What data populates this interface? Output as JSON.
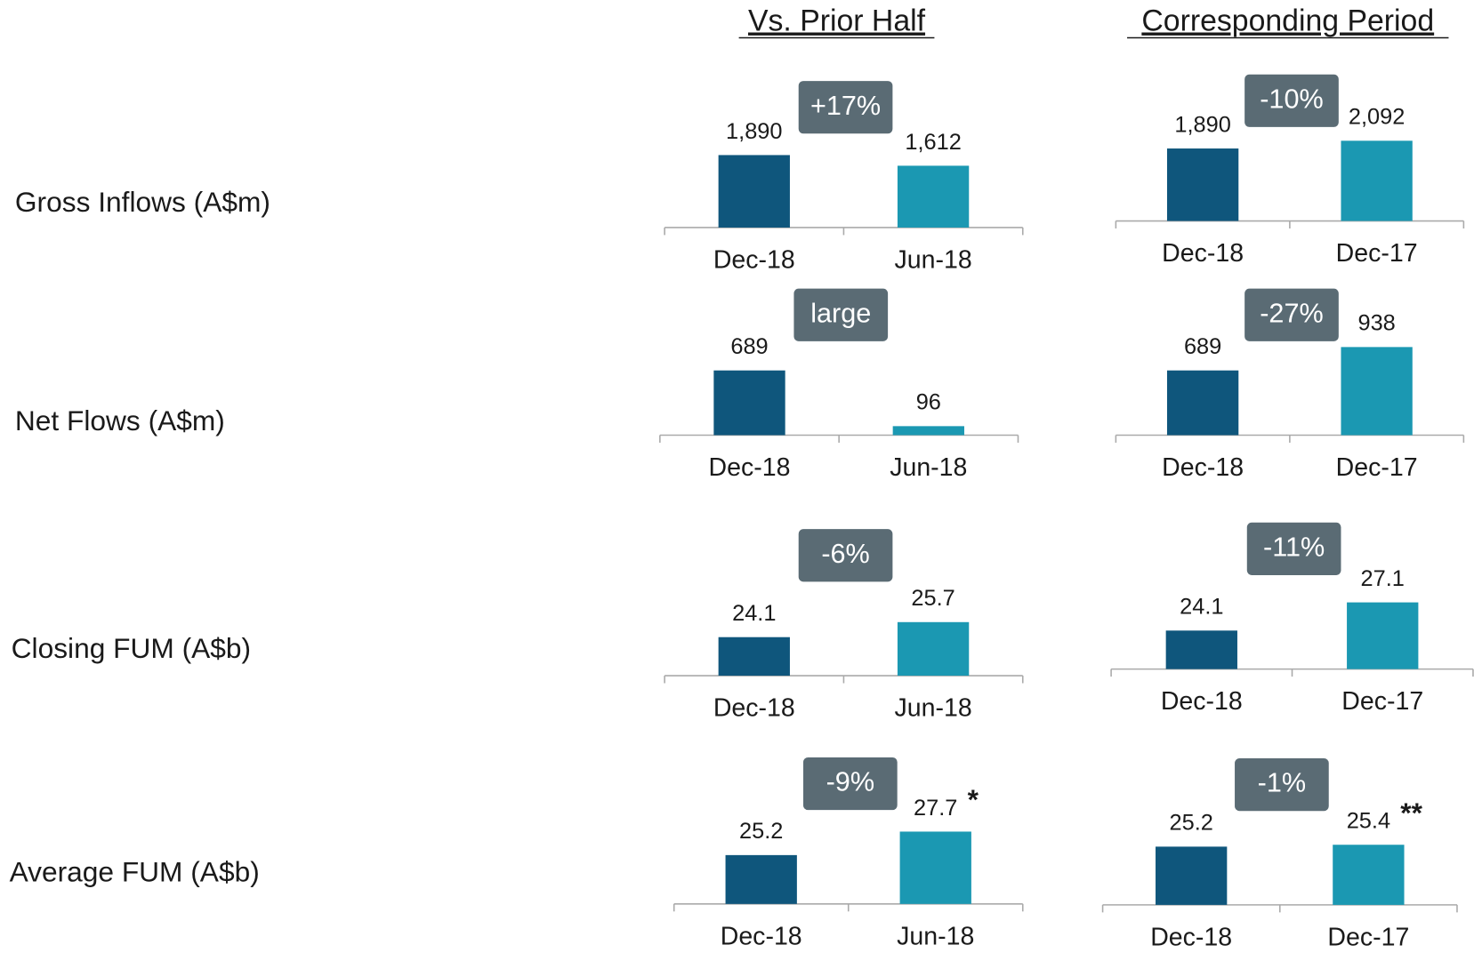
{
  "column_headers": [
    "Vs. Prior Half",
    "Corresponding Period"
  ],
  "row_labels": [
    "Gross Inflows (A$m)",
    "Net Flows (A$m)",
    "Closing FUM (A$b)",
    "Average FUM (A$b)"
  ],
  "chart_data": [
    {
      "type": "bar",
      "categories": [
        "Dec-18",
        "Jun-18"
      ],
      "values": [
        1890,
        1612
      ],
      "value_labels": [
        "1,890",
        "1,612"
      ],
      "colors": [
        "#0f567c",
        "#1b98b2"
      ],
      "ylim": [
        0,
        2450
      ],
      "annotation": "+17%"
    },
    {
      "type": "bar",
      "categories": [
        "Dec-18",
        "Dec-17"
      ],
      "values": [
        1890,
        2092
      ],
      "value_labels": [
        "1,890",
        "2,092"
      ],
      "colors": [
        "#0f567c",
        "#1b98b2"
      ],
      "ylim": [
        0,
        2450
      ],
      "annotation": "-10%"
    },
    {
      "type": "bar",
      "categories": [
        "Dec-18",
        "Jun-18"
      ],
      "values": [
        689,
        96
      ],
      "colors": [
        "#0f567c",
        "#1b98b2"
      ],
      "ylim": [
        0,
        1000
      ],
      "annotation": "large"
    },
    {
      "type": "bar",
      "categories": [
        "Dec-18",
        "Dec-17"
      ],
      "values": [
        689,
        938
      ],
      "colors": [
        "#0f567c",
        "#1b98b2"
      ],
      "ylim": [
        0,
        1000
      ],
      "annotation": "-27%"
    },
    {
      "type": "bar",
      "categories": [
        "Dec-18",
        "Jun-18"
      ],
      "values": [
        24.1,
        25.7
      ],
      "colors": [
        "#0f567c",
        "#1b98b2"
      ],
      "ylim": [
        20,
        30
      ],
      "annotation": "-6%"
    },
    {
      "type": "bar",
      "categories": [
        "Dec-18",
        "Dec-17"
      ],
      "values": [
        24.1,
        27.1
      ],
      "colors": [
        "#0f567c",
        "#1b98b2"
      ],
      "ylim": [
        20,
        30
      ],
      "annotation": "-11%"
    },
    {
      "type": "bar",
      "categories": [
        "Dec-18",
        "Jun-18"
      ],
      "values": [
        25.2,
        27.7
      ],
      "colors": [
        "#0f567c",
        "#1b98b2"
      ],
      "ylim": [
        20,
        30
      ],
      "annotation": "-9%",
      "footnote_mark": "*"
    },
    {
      "type": "bar",
      "categories": [
        "Dec-18",
        "Dec-17"
      ],
      "values": [
        25.2,
        25.4
      ],
      "colors": [
        "#0f567c",
        "#1b98b2"
      ],
      "ylim": [
        19,
        29
      ],
      "annotation": "-1%",
      "footnote_mark": "**"
    }
  ]
}
